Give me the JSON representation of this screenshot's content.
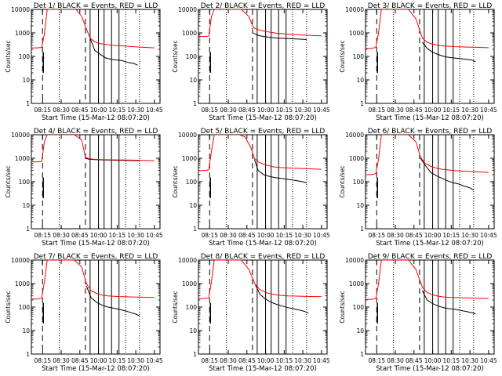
{
  "colors": {
    "events": "#000000",
    "lld": "#ff0000",
    "axis": "#000000"
  },
  "shared": {
    "ylabel": "Counts/sec",
    "xlabel": "Start Time (15-Mar-12 08:07:20)",
    "x_tick_labels": [
      "08:15",
      "08:30",
      "08:45",
      "10:00",
      "10:15",
      "10:30",
      "10:45"
    ],
    "x_tick_positions": [
      0,
      1,
      2,
      3,
      4,
      5,
      6
    ],
    "y_tick_labels": [
      "1",
      "10",
      "100",
      "1000",
      "10000"
    ],
    "ylim": [
      1,
      10000
    ],
    "xlim": [
      -0.6,
      6.3
    ],
    "dashed_markers": [
      0,
      2.3
    ],
    "solid_markers": [
      2.55,
      3.0,
      3.3,
      3.7,
      4.1
    ],
    "dotted_markers": [
      0.9,
      4.45,
      5.2
    ]
  },
  "chart_data": [
    {
      "type": "line",
      "title": "Det 1/ BLACK = Events, RED = LLD",
      "series": [
        {
          "name": "Events",
          "color": "black",
          "x": [
            -0.6,
            -0.25,
            -0.05,
            0.02,
            0.05,
            0.08,
            2.1,
            2.35,
            2.55,
            2.8,
            3.1,
            3.4,
            3.7,
            4.0,
            4.3,
            4.6,
            4.9,
            5.1
          ],
          "values": [
            null,
            null,
            null,
            null,
            80,
            90,
            null,
            null,
            600,
            180,
            120,
            85,
            75,
            70,
            65,
            55,
            50,
            42
          ]
        },
        {
          "name": "LLD",
          "color": "red",
          "x": [
            -0.6,
            -0.3,
            -0.05,
            0.1,
            0.25,
            0.4,
            0.7,
            1.0,
            1.4,
            1.8,
            2.1,
            2.35,
            2.55,
            2.8,
            3.1,
            3.4,
            3.7,
            4.0,
            4.3,
            4.6,
            4.9,
            5.2,
            5.6,
            6.0
          ],
          "values": [
            230,
            230,
            240,
            900,
            10000,
            10000,
            10000,
            10000,
            10000,
            10000,
            5000,
            1500,
            600,
            420,
            350,
            320,
            300,
            290,
            280,
            270,
            260,
            250,
            240,
            230
          ]
        }
      ]
    },
    {
      "type": "line",
      "title": "Det 2/ BLACK = Events, RED = LLD",
      "series": [
        {
          "name": "Events",
          "color": "black",
          "x": [
            2.35,
            2.55,
            2.9,
            3.3,
            3.7,
            4.1,
            4.5,
            4.9,
            5.2
          ],
          "values": [
            1000,
            800,
            700,
            640,
            600,
            580,
            560,
            540,
            520
          ]
        },
        {
          "name": "LLD",
          "color": "red",
          "x": [
            -0.6,
            -0.3,
            -0.05,
            0.1,
            0.25,
            0.5,
            0.9,
            1.3,
            1.7,
            2.1,
            2.35,
            2.55,
            2.9,
            3.3,
            3.7,
            4.1,
            4.5,
            4.9,
            5.4,
            6.0
          ],
          "values": [
            700,
            700,
            720,
            5000,
            10000,
            10000,
            10000,
            10000,
            10000,
            5000,
            1700,
            1400,
            1200,
            1050,
            950,
            900,
            850,
            820,
            780,
            750
          ]
        }
      ]
    },
    {
      "type": "line",
      "title": "Det 3/ BLACK = Events, RED = LLD",
      "series": [
        {
          "name": "Events",
          "color": "black",
          "x": [
            2.45,
            2.7,
            3.0,
            3.3,
            3.6,
            3.9,
            4.2,
            4.5,
            4.8,
            5.1,
            5.3
          ],
          "values": [
            400,
            220,
            150,
            120,
            100,
            90,
            85,
            80,
            75,
            70,
            60
          ]
        },
        {
          "name": "LLD",
          "color": "red",
          "x": [
            -0.6,
            -0.3,
            -0.05,
            0.1,
            0.25,
            0.5,
            0.9,
            1.3,
            1.7,
            2.1,
            2.45,
            2.7,
            3.0,
            3.3,
            3.6,
            3.9,
            4.2,
            4.5,
            4.8,
            5.2,
            5.6,
            6.0
          ],
          "values": [
            220,
            220,
            240,
            1000,
            10000,
            10000,
            10000,
            10000,
            10000,
            4000,
            600,
            400,
            330,
            300,
            280,
            270,
            260,
            255,
            250,
            245,
            240,
            235
          ]
        }
      ]
    },
    {
      "type": "line",
      "title": "Det 4/ BLACK = Events, RED = LLD",
      "series": [
        {
          "name": "Events",
          "color": "black",
          "x": [
            2.3,
            2.5,
            2.8,
            3.2,
            3.6,
            4.0,
            4.4,
            4.8,
            5.2
          ],
          "values": [
            1000,
            900,
            870,
            850,
            830,
            820,
            810,
            800,
            790
          ]
        },
        {
          "name": "LLD",
          "color": "red",
          "x": [
            -0.6,
            -0.3,
            -0.05,
            0.1,
            0.25,
            0.5,
            0.9,
            1.3,
            1.7,
            2.1,
            2.3,
            2.5,
            2.8,
            3.2,
            3.6,
            4.0,
            4.4,
            4.8,
            5.2,
            5.6,
            6.0
          ],
          "values": [
            700,
            700,
            720,
            5000,
            10000,
            10000,
            10000,
            10000,
            10000,
            6000,
            1100,
            950,
            900,
            880,
            860,
            850,
            840,
            830,
            820,
            800,
            780
          ]
        }
      ]
    },
    {
      "type": "line",
      "title": "Det 5/ BLACK = Events, RED = LLD",
      "series": [
        {
          "name": "Events",
          "color": "black",
          "x": [
            2.4,
            2.6,
            2.9,
            3.2,
            3.5,
            3.8,
            4.1,
            4.4,
            4.7,
            5.0,
            5.2
          ],
          "values": [
            900,
            300,
            200,
            170,
            150,
            140,
            130,
            120,
            110,
            100,
            90
          ]
        },
        {
          "name": "LLD",
          "color": "red",
          "x": [
            -0.6,
            -0.3,
            -0.05,
            0.1,
            0.25,
            0.45,
            0.8,
            1.2,
            1.6,
            1.9,
            2.2,
            2.4,
            2.6,
            2.9,
            3.2,
            3.5,
            3.8,
            4.1,
            4.4,
            4.8,
            5.2,
            5.6,
            6.0
          ],
          "values": [
            300,
            300,
            320,
            2000,
            10000,
            10000,
            10000,
            10000,
            10000,
            8000,
            3000,
            1000,
            700,
            550,
            480,
            420,
            400,
            390,
            380,
            370,
            360,
            350,
            340
          ]
        }
      ]
    },
    {
      "type": "line",
      "title": "Det 6/ BLACK = Events, RED = LLD",
      "series": [
        {
          "name": "Events",
          "color": "black",
          "x": [
            2.35,
            2.6,
            2.9,
            3.2,
            3.5,
            3.8,
            4.1,
            4.4,
            4.7,
            5.0,
            5.2
          ],
          "values": [
            1000,
            500,
            250,
            180,
            140,
            110,
            90,
            80,
            65,
            55,
            45
          ]
        },
        {
          "name": "LLD",
          "color": "red",
          "x": [
            -0.6,
            -0.3,
            -0.05,
            0.1,
            0.25,
            0.5,
            0.9,
            1.3,
            1.7,
            2.1,
            2.35,
            2.6,
            2.9,
            3.2,
            3.5,
            3.8,
            4.1,
            4.4,
            4.8,
            5.2,
            5.6,
            6.0
          ],
          "values": [
            200,
            200,
            220,
            900,
            10000,
            10000,
            10000,
            10000,
            10000,
            5000,
            1100,
            600,
            450,
            380,
            340,
            320,
            300,
            290,
            280,
            270,
            260,
            250
          ]
        }
      ]
    },
    {
      "type": "line",
      "title": "Det 7/ BLACK = Events, RED = LLD",
      "series": [
        {
          "name": "Events",
          "color": "black",
          "x": [
            2.35,
            2.6,
            2.9,
            3.2,
            3.5,
            3.8,
            4.1,
            4.4,
            4.7,
            5.0,
            5.2
          ],
          "values": [
            800,
            250,
            160,
            120,
            100,
            90,
            80,
            70,
            60,
            50,
            42
          ]
        },
        {
          "name": "LLD",
          "color": "red",
          "x": [
            -0.6,
            -0.3,
            -0.05,
            0.1,
            0.25,
            0.5,
            0.9,
            1.3,
            1.7,
            2.1,
            2.35,
            2.6,
            2.9,
            3.2,
            3.5,
            3.8,
            4.1,
            4.4,
            4.8,
            5.2,
            5.6,
            6.0
          ],
          "values": [
            220,
            220,
            240,
            1200,
            10000,
            10000,
            10000,
            10000,
            10000,
            5000,
            1000,
            500,
            380,
            320,
            300,
            290,
            280,
            275,
            270,
            265,
            260,
            255
          ]
        }
      ]
    },
    {
      "type": "line",
      "title": "Det 8/ BLACK = Events, RED = LLD",
      "series": [
        {
          "name": "Events",
          "color": "black",
          "x": [
            2.45,
            2.7,
            3.0,
            3.3,
            3.6,
            3.9,
            4.2,
            4.5,
            4.8,
            5.1,
            5.3
          ],
          "values": [
            900,
            350,
            220,
            160,
            130,
            110,
            95,
            85,
            75,
            65,
            55
          ]
        },
        {
          "name": "LLD",
          "color": "red",
          "x": [
            -0.6,
            -0.3,
            -0.05,
            0.1,
            0.25,
            0.5,
            0.9,
            1.3,
            1.7,
            2.1,
            2.45,
            2.7,
            3.0,
            3.3,
            3.6,
            3.9,
            4.2,
            4.5,
            4.8,
            5.2,
            5.6,
            6.0
          ],
          "values": [
            230,
            230,
            250,
            1200,
            10000,
            10000,
            10000,
            10000,
            10000,
            4000,
            900,
            550,
            420,
            360,
            330,
            310,
            300,
            295,
            290,
            285,
            280,
            275
          ]
        }
      ]
    },
    {
      "type": "line",
      "title": "Det 9/ BLACK = Events, RED = LLD",
      "series": [
        {
          "name": "Events",
          "color": "black",
          "x": [
            2.45,
            2.7,
            3.0,
            3.3,
            3.6,
            3.9,
            4.2,
            4.5,
            4.8,
            5.1,
            5.3
          ],
          "values": [
            500,
            200,
            140,
            110,
            95,
            85,
            80,
            72,
            65,
            58,
            52
          ]
        },
        {
          "name": "LLD",
          "color": "red",
          "x": [
            -0.6,
            -0.3,
            -0.05,
            0.1,
            0.25,
            0.5,
            0.9,
            1.3,
            1.7,
            2.1,
            2.45,
            2.7,
            3.0,
            3.3,
            3.6,
            3.9,
            4.2,
            4.5,
            4.8,
            5.2,
            5.6,
            6.0
          ],
          "values": [
            210,
            210,
            230,
            1000,
            10000,
            10000,
            10000,
            10000,
            10000,
            4000,
            700,
            420,
            330,
            290,
            270,
            260,
            255,
            250,
            245,
            240,
            235,
            230
          ]
        }
      ]
    }
  ]
}
